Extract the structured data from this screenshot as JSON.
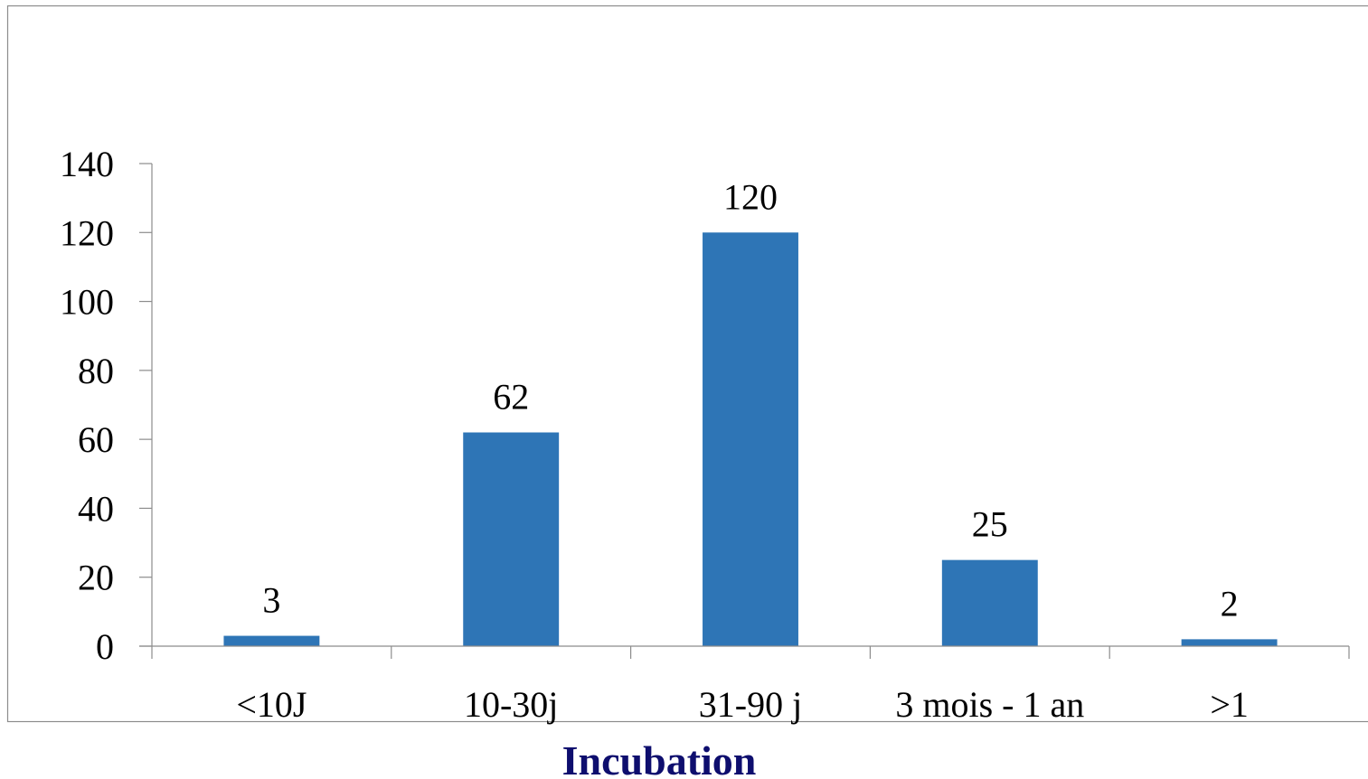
{
  "chart_data": {
    "type": "bar",
    "categories": [
      "<10J",
      "10-30j",
      "31-90 j",
      "3 mois - 1 an",
      ">1"
    ],
    "values": [
      3,
      62,
      120,
      25,
      2
    ],
    "title": "",
    "xlabel": "Incubation",
    "ylabel": "",
    "ylim": [
      0,
      140
    ],
    "yticks": [
      "0",
      "20",
      "40",
      "60",
      "80",
      "100",
      "120",
      "140"
    ],
    "data_labels": [
      "3",
      "62",
      "120",
      "25",
      "2"
    ],
    "grid": false,
    "legend": "none",
    "bar_color": "#2E75B6",
    "xlabel_color": "#0E0E6E"
  }
}
